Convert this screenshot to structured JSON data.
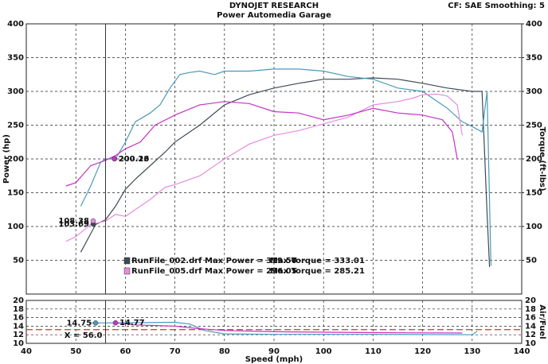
{
  "chart_data": [
    {
      "type": "line",
      "title": "DYNOJET RESEARCH",
      "subtitle": "Power Automedia Garage",
      "header_note": "CF: SAE  Smoothing: 5",
      "ylabel": "Power (hp)",
      "y2label": "Torque (ft-lbs)",
      "xlim": [
        40,
        140
      ],
      "xticks": [
        40,
        50,
        60,
        70,
        80,
        90,
        100,
        110,
        120,
        130,
        140
      ],
      "ylim": [
        0,
        400
      ],
      "yticks": [
        50,
        100,
        150,
        200,
        250,
        300,
        350,
        400
      ],
      "y2lim": [
        0,
        400
      ],
      "y2ticks": [
        50,
        100,
        150,
        200,
        250,
        300,
        350,
        400
      ],
      "grid": true,
      "series": [
        {
          "name": "RunFile_002.drf Max Power = 319.50",
          "color": "#3d4a57",
          "axis": "y",
          "x": [
            51,
            54,
            56,
            58,
            60,
            62,
            65,
            68,
            70,
            75,
            80,
            85,
            90,
            95,
            100,
            105,
            110,
            115,
            120,
            125,
            130,
            132,
            133,
            133.5
          ],
          "values": [
            62,
            103,
            110,
            130,
            155,
            170,
            190,
            210,
            225,
            250,
            280,
            295,
            305,
            312,
            318,
            318,
            320,
            318,
            312,
            305,
            300,
            300,
            120,
            40
          ]
        },
        {
          "name": "Max Torque = 333.01",
          "color": "#4a9ab8",
          "axis": "y2",
          "x": [
            51,
            53,
            55,
            56,
            58,
            60,
            62,
            65,
            67,
            69,
            71,
            73,
            75,
            78,
            80,
            85,
            90,
            95,
            100,
            105,
            110,
            115,
            120,
            125,
            128,
            130,
            132,
            133,
            133.8
          ],
          "values": [
            130,
            160,
            195,
            200,
            200,
            225,
            255,
            268,
            280,
            305,
            325,
            328,
            330,
            325,
            330,
            330,
            333,
            333,
            330,
            322,
            318,
            305,
            300,
            275,
            255,
            248,
            240,
            300,
            42
          ]
        },
        {
          "name": "RunFile_005.drf Max Power = 296.05",
          "color": "#e68ce0",
          "axis": "y",
          "x": [
            48,
            50,
            53,
            56,
            58,
            60,
            62,
            65,
            68,
            70,
            75,
            80,
            85,
            90,
            95,
            100,
            105,
            110,
            115,
            118,
            120,
            123,
            125,
            127,
            128
          ],
          "values": [
            78,
            85,
            103,
            108,
            118,
            115,
            125,
            140,
            158,
            162,
            175,
            200,
            222,
            235,
            242,
            252,
            262,
            280,
            285,
            290,
            295,
            296,
            293,
            280,
            235
          ]
        },
        {
          "name": "Max Torque = 285.21",
          "color": "#c433c4",
          "axis": "y2",
          "x": [
            48,
            50,
            53,
            56,
            58,
            60,
            63,
            66,
            70,
            75,
            80,
            85,
            90,
            95,
            100,
            105,
            110,
            115,
            120,
            124,
            126,
            127
          ],
          "values": [
            160,
            165,
            190,
            198,
            205,
            215,
            225,
            250,
            265,
            280,
            285,
            282,
            270,
            268,
            258,
            265,
            275,
            268,
            265,
            258,
            240,
            200
          ]
        }
      ],
      "readouts": [
        {
          "series": 0,
          "x": 53.5,
          "value": 103.69
        },
        {
          "series": 1,
          "x": 57.8,
          "value": 200.23
        },
        {
          "series": 2,
          "x": 53.5,
          "value": 108.38
        },
        {
          "series": 3,
          "x": 57.8,
          "value": 200.16
        }
      ],
      "cursor": {
        "x": 56
      }
    },
    {
      "type": "line",
      "ylabel": "Air/Fuel",
      "xlabel": "Speed (mph)",
      "xlim": [
        40,
        140
      ],
      "xticks": [
        40,
        50,
        60,
        70,
        80,
        90,
        100,
        110,
        120,
        130,
        140
      ],
      "ylim": [
        10,
        20
      ],
      "yticks": [
        10,
        12,
        14,
        16,
        18,
        20
      ],
      "grid": true,
      "reference_line": {
        "value": 13.2,
        "color": "#d03030"
      },
      "series": [
        {
          "color": "#4a9ab8",
          "x": [
            53,
            60,
            70,
            73,
            76,
            80,
            90,
            110,
            130,
            131
          ],
          "values": [
            14.75,
            14.8,
            14.9,
            14.5,
            13,
            12.2,
            12.1,
            12.1,
            12,
            12.8
          ]
        },
        {
          "color": "#c433c4",
          "x": [
            58,
            62,
            70,
            75,
            80,
            90,
            110,
            128
          ],
          "values": [
            14.77,
            14.3,
            14,
            13.4,
            13,
            12.7,
            12.5,
            12.4
          ]
        }
      ],
      "readouts": [
        {
          "series": 0,
          "x": 54,
          "value": 14.75
        },
        {
          "series": 1,
          "x": 58,
          "value": 14.77
        }
      ],
      "cursor": {
        "x": 56,
        "label": "X = 56.0"
      }
    }
  ]
}
